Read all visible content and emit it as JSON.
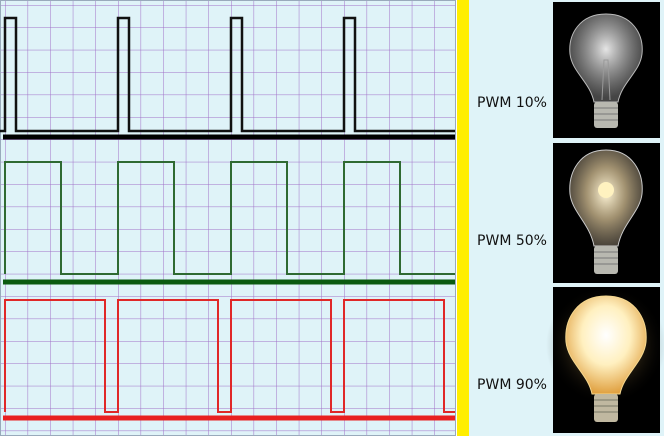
{
  "labels": [
    "PWM 10%",
    "PWM 50%",
    "PWM 90%"
  ]
}
